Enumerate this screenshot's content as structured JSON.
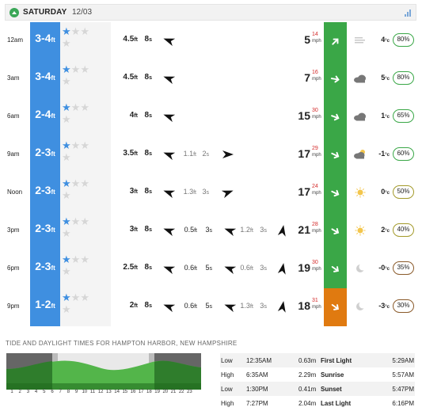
{
  "header": {
    "day": "SATURDAY",
    "date": "12/03"
  },
  "colors": {
    "surf": "#3f8fe0",
    "wind_green": "#3aa747",
    "wind_orange": "#e07a10",
    "gust": "#d42c2c"
  },
  "rows": [
    {
      "time": "12am",
      "surf": "3-4",
      "unit": "ft",
      "stars": 1,
      "primary_swell": "4.5",
      "primary_period": "8",
      "swell2": "",
      "swell2_period": "",
      "swell3": "",
      "swell3_period": "",
      "wind": "5",
      "gust": "14",
      "wind_unit": "mph",
      "wind_color": "green",
      "weather_icon": "cloud-lines-icon",
      "temp": "4",
      "temp_unit": "°c",
      "humidity": "80%"
    },
    {
      "time": "3am",
      "surf": "3-4",
      "unit": "ft",
      "stars": 1,
      "primary_swell": "4.5",
      "primary_period": "8",
      "swell2": "",
      "swell2_period": "",
      "swell3": "",
      "swell3_period": "",
      "wind": "7",
      "gust": "16",
      "wind_unit": "mph",
      "wind_color": "green",
      "weather_icon": "cloud-icon",
      "temp": "5",
      "temp_unit": "°c",
      "humidity": "80%"
    },
    {
      "time": "6am",
      "surf": "2-4",
      "unit": "ft",
      "stars": 1,
      "primary_swell": "4",
      "primary_period": "8",
      "swell2": "",
      "swell2_period": "",
      "swell3": "",
      "swell3_period": "",
      "wind": "15",
      "gust": "30",
      "wind_unit": "mph",
      "wind_color": "green",
      "weather_icon": "cloud-icon",
      "temp": "1",
      "temp_unit": "°c",
      "humidity": "65%"
    },
    {
      "time": "9am",
      "surf": "2-3",
      "unit": "ft",
      "stars": 1,
      "primary_swell": "3.5",
      "primary_period": "8",
      "swell2": "1.1",
      "swell2_period": "2",
      "swell3": "",
      "swell3_period": "",
      "wind": "17",
      "gust": "29",
      "wind_unit": "mph",
      "wind_color": "green",
      "weather_icon": "cloud-sun-icon",
      "temp": "-1",
      "temp_unit": "°c",
      "humidity": "60%"
    },
    {
      "time": "Noon",
      "surf": "2-3",
      "unit": "ft",
      "stars": 1,
      "primary_swell": "3",
      "primary_period": "8",
      "swell2": "1.3",
      "swell2_period": "3",
      "swell3": "",
      "swell3_period": "",
      "wind": "17",
      "gust": "24",
      "wind_unit": "mph",
      "wind_color": "green",
      "weather_icon": "sun-icon",
      "temp": "0",
      "temp_unit": "°c",
      "humidity": "50%"
    },
    {
      "time": "3pm",
      "surf": "2-3",
      "unit": "ft",
      "stars": 1,
      "primary_swell": "3",
      "primary_period": "8",
      "swell2": "0.5",
      "swell2_period": "3",
      "swell3": "1.2",
      "swell3_period": "3",
      "wind": "21",
      "gust": "28",
      "wind_unit": "mph",
      "wind_color": "green",
      "weather_icon": "sun-icon",
      "temp": "2",
      "temp_unit": "°c",
      "humidity": "40%"
    },
    {
      "time": "6pm",
      "surf": "2-3",
      "unit": "ft",
      "stars": 1,
      "primary_swell": "2.5",
      "primary_period": "8",
      "swell2": "0.6",
      "swell2_period": "5",
      "swell3": "0.6",
      "swell3_period": "3",
      "wind": "19",
      "gust": "30",
      "wind_unit": "mph",
      "wind_color": "green",
      "weather_icon": "moon-icon",
      "temp": "-0",
      "temp_unit": "°c",
      "humidity": "35%"
    },
    {
      "time": "9pm",
      "surf": "1-2",
      "unit": "ft",
      "stars": 1,
      "primary_swell": "2",
      "primary_period": "8",
      "swell2": "0.6",
      "swell2_period": "5",
      "swell3": "1.3",
      "swell3_period": "3",
      "wind": "18",
      "gust": "31",
      "wind_unit": "mph",
      "wind_color": "orange",
      "weather_icon": "moon-icon",
      "temp": "-3",
      "temp_unit": "°c",
      "humidity": "30%"
    }
  ],
  "tide": {
    "title": "TIDE AND DAYLIGHT TIMES FOR HAMPTON HARBOR, NEW HAMPSHIRE",
    "hours": [
      "1",
      "2",
      "3",
      "4",
      "5",
      "6",
      "7",
      "8",
      "9",
      "10",
      "11",
      "12",
      "13",
      "14",
      "15",
      "16",
      "17",
      "18",
      "19",
      "20",
      "21",
      "22",
      "23"
    ],
    "rows": [
      {
        "type": "Low",
        "time": "12:35AM",
        "height": "0.63m",
        "label": "First Light",
        "value": "5:29AM"
      },
      {
        "type": "High",
        "time": "6:35AM",
        "height": "2.29m",
        "label": "Sunrise",
        "value": "5:57AM"
      },
      {
        "type": "Low",
        "time": "1:30PM",
        "height": "0.41m",
        "label": "Sunset",
        "value": "5:47PM"
      },
      {
        "type": "High",
        "time": "7:27PM",
        "height": "2.04m",
        "label": "Last Light",
        "value": "6:16PM"
      }
    ]
  }
}
